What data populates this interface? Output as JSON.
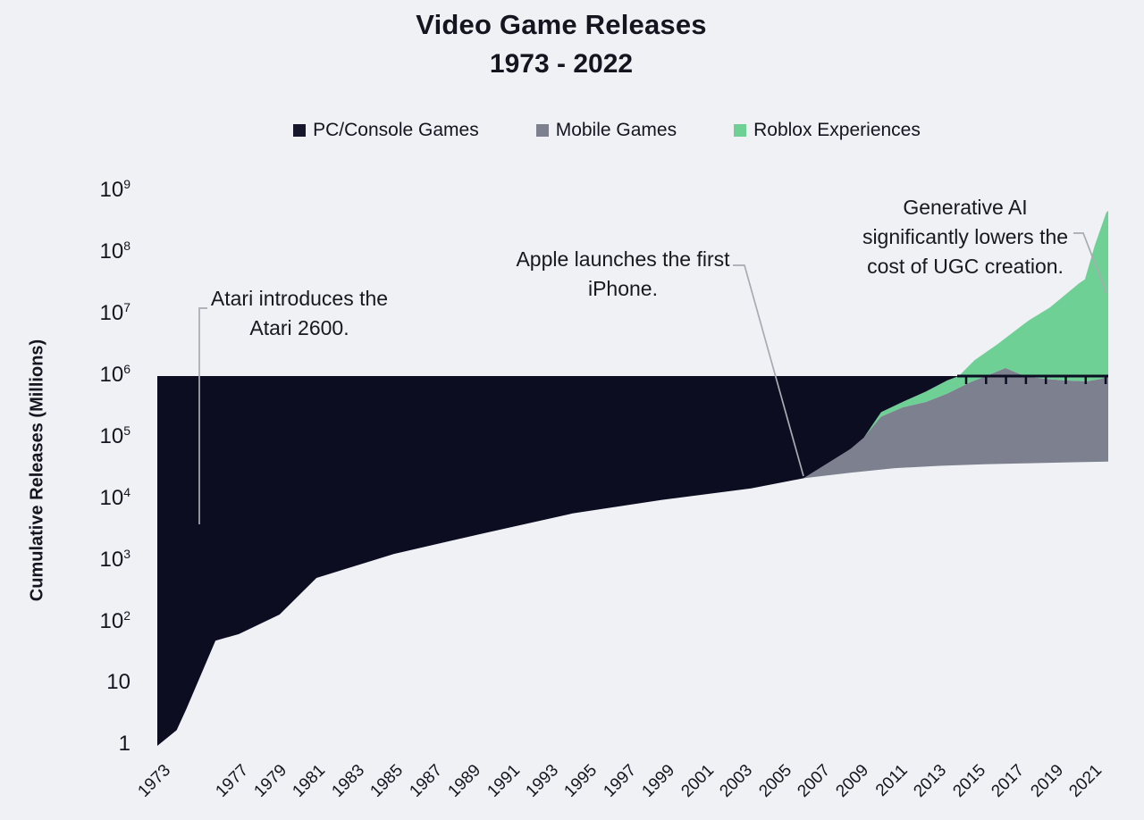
{
  "title": {
    "line1": "Video Game Releases",
    "line2": "1973 - 2022"
  },
  "legend": {
    "items": [
      {
        "label": "PC/Console Games",
        "color": "#16162c"
      },
      {
        "label": "Mobile Games",
        "color": "#7d808f"
      },
      {
        "label": "Roblox Experiences",
        "color": "#6fd096"
      }
    ]
  },
  "y_axis": {
    "title": "Cumulative Releases (Millions)",
    "scale": "log",
    "range": [
      1,
      1000000000
    ],
    "tick_labels": [
      "10^9",
      "10^8",
      "10^7",
      "10^6",
      "10^5",
      "10^4",
      "10^3",
      "10^2",
      "10",
      "1"
    ]
  },
  "x_axis": {
    "range": [
      1973,
      2022
    ],
    "tick_labels": [
      "1973",
      "1977",
      "1979",
      "1981",
      "1983",
      "1985",
      "1987",
      "1989",
      "1991",
      "1993",
      "1995",
      "1997",
      "1999",
      "2001",
      "2003",
      "2005",
      "2007",
      "2009",
      "2011",
      "2013",
      "2015",
      "2017",
      "2019",
      "2021"
    ]
  },
  "annotations": [
    {
      "id": "atari",
      "lines": [
        "Atari introduces the",
        "Atari 2600."
      ]
    },
    {
      "id": "iphone",
      "lines": [
        "Apple launches the first",
        "iPhone."
      ]
    },
    {
      "id": "genai",
      "lines": [
        "Generative AI",
        "significantly lowers the",
        "cost of UGC creation."
      ]
    }
  ],
  "colors": {
    "background": "#eff1f5",
    "pc_console": "#0d0d22",
    "mobile": "#7d808f",
    "roblox": "#6fd096",
    "connector_line": "#a9aab2",
    "text": "#15151f"
  },
  "chart_data": {
    "type": "area",
    "title": "Video Game Releases 1973 - 2022",
    "ylabel": "Cumulative Releases (Millions)",
    "y_scale": "log",
    "ylim": [
      1,
      1000000000
    ],
    "xlim": [
      1973,
      2022
    ],
    "grid": false,
    "legend_position": "top",
    "pc_area_top_cap": 1000000,
    "series": [
      {
        "name": "PC/Console Games",
        "key": "pc_console",
        "points": [
          [
            1973,
            1
          ],
          [
            1974,
            1.8
          ],
          [
            1974.5,
            4
          ],
          [
            1976,
            51
          ],
          [
            1977.2,
            65
          ],
          [
            1979.3,
            135
          ],
          [
            1981.2,
            530
          ],
          [
            1985.2,
            1300
          ],
          [
            1989.8,
            2800
          ],
          [
            1994.4,
            5900
          ],
          [
            1999,
            9800
          ],
          [
            2003.6,
            15000
          ],
          [
            2006.3,
            22000
          ],
          [
            2008.7,
            27000
          ],
          [
            2011,
            32000
          ],
          [
            2013.3,
            35000
          ],
          [
            2015.6,
            37000
          ],
          [
            2017.9,
            38500
          ],
          [
            2020.2,
            40000
          ],
          [
            2022,
            41000
          ]
        ]
      },
      {
        "name": "Mobile Games",
        "key": "mobile",
        "points": [
          [
            2006.3,
            22000
          ],
          [
            2008.7,
            65000
          ],
          [
            2010.3,
            220000
          ],
          [
            2011.4,
            310000
          ],
          [
            2012.6,
            380000
          ],
          [
            2013.7,
            520000
          ],
          [
            2014.9,
            800000
          ],
          [
            2015.7,
            1000000
          ],
          [
            2016.7,
            1350000
          ],
          [
            2017.7,
            1000000
          ],
          [
            2018.8,
            900000
          ],
          [
            2019.8,
            850000
          ],
          [
            2020.9,
            820000
          ],
          [
            2021.6,
            900000
          ],
          [
            2022,
            1000000
          ]
        ]
      },
      {
        "name": "Roblox Experiences",
        "key": "roblox",
        "points": [
          [
            2009.4,
            100000
          ],
          [
            2010.3,
            260000
          ],
          [
            2011.4,
            380000
          ],
          [
            2012.6,
            560000
          ],
          [
            2013.7,
            850000
          ],
          [
            2014.3,
            1000000
          ],
          [
            2015.1,
            1800000
          ],
          [
            2016.3,
            3300000
          ],
          [
            2017.9,
            8000000
          ],
          [
            2019,
            13000000
          ],
          [
            2020.5,
            32000000
          ],
          [
            2020.8,
            37000000
          ],
          [
            2021.3,
            130000000
          ],
          [
            2021.9,
            450000000
          ],
          [
            2022,
            480000000
          ]
        ]
      }
    ]
  }
}
